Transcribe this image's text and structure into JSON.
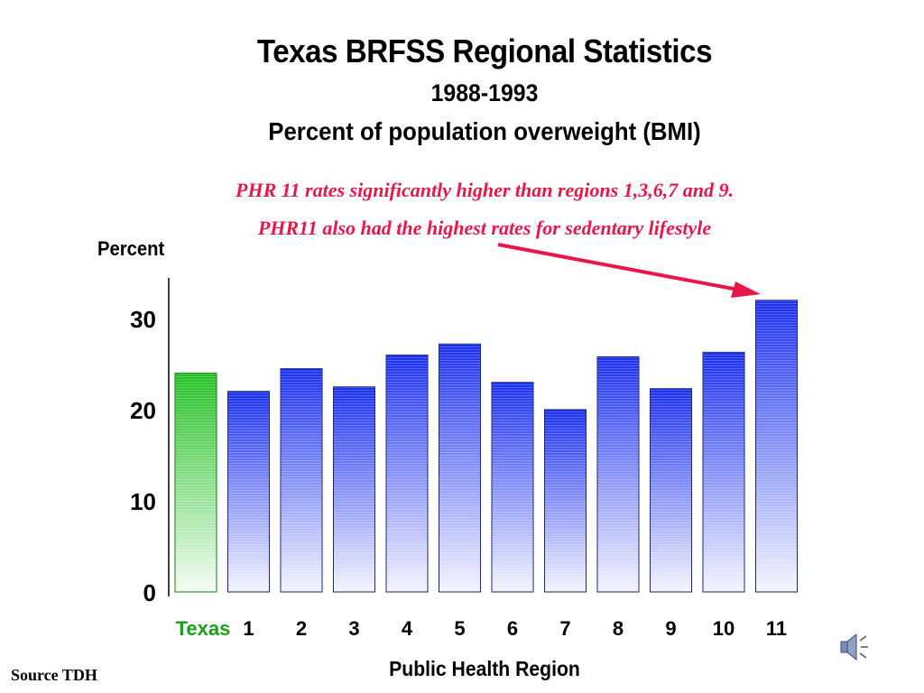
{
  "slide": {
    "title": "Texas BRFSS Regional Statistics",
    "subtitle_years": "1988-1993",
    "subtitle_measure": "Percent of population overweight (BMI)",
    "note_1": "PHR 11 rates significantly higher than regions 1,3,6,7 and 9.",
    "note_2": "PHR11 also had the highest rates for sedentary lifestyle",
    "source": "Source TDH",
    "speaker_icon": "speaker-sound-icon"
  },
  "chart_data": {
    "type": "bar",
    "ylabel": "Percent",
    "xlabel": "Public Health Region",
    "ylim": [
      0,
      35
    ],
    "yticks": [
      0,
      10,
      20,
      30
    ],
    "categories": [
      "Texas",
      "1",
      "2",
      "3",
      "4",
      "5",
      "6",
      "7",
      "8",
      "9",
      "10",
      "11"
    ],
    "values": [
      24,
      22,
      24.5,
      22.5,
      26,
      27.2,
      23,
      20,
      25.8,
      22.3,
      26.3,
      32
    ],
    "grid": false,
    "legend": "none",
    "colors": {
      "texas": "#22c022",
      "texas_label": "#18a018",
      "regions": "#1a30f0",
      "annotation": "#e8174a"
    },
    "annotation": {
      "from": "PHR11 also had the highest rates for sedentary lifestyle",
      "points_to": "11"
    }
  }
}
